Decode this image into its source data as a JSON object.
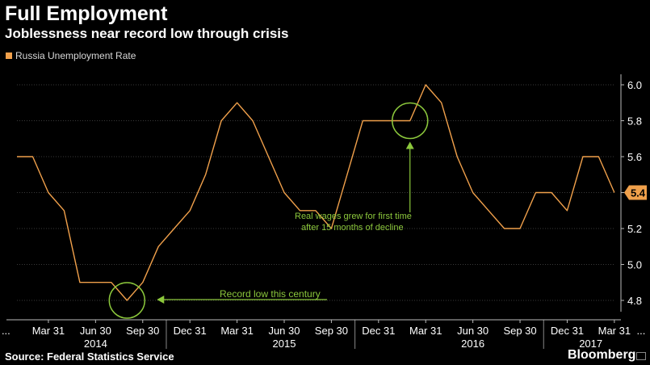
{
  "header": {
    "title": "Full Employment",
    "subtitle": "Joblessness near record low through crisis"
  },
  "footer": {
    "source": "Source: Federal Statistics Service",
    "brand": "Bloomberg"
  },
  "colors": {
    "line": "#f0a04b",
    "annotation": "#8cc83c",
    "grid": "#3a3a3a",
    "badge": "#f0a04b"
  },
  "chart_data": {
    "type": "line",
    "title": "Full Employment",
    "subtitle": "Joblessness near record low through crisis",
    "series": [
      {
        "name": "Russia Unemployment Rate",
        "x": [
          0,
          1,
          2,
          3,
          4,
          5,
          6,
          7,
          8,
          9,
          10,
          11,
          12,
          13,
          14,
          15,
          16,
          17,
          18,
          19,
          20,
          21,
          22,
          23,
          24,
          25,
          26,
          27,
          28,
          29,
          30,
          31,
          32,
          33,
          34,
          35,
          36,
          37,
          38
        ],
        "values": [
          5.6,
          5.6,
          5.4,
          5.3,
          4.9,
          4.9,
          4.9,
          4.8,
          4.9,
          5.1,
          5.2,
          5.3,
          5.5,
          5.8,
          5.9,
          5.8,
          5.6,
          5.4,
          5.3,
          5.3,
          5.2,
          5.5,
          5.8,
          5.8,
          5.8,
          5.8,
          6.0,
          5.9,
          5.6,
          5.4,
          5.3,
          5.2,
          5.2,
          5.4,
          5.4,
          5.3,
          5.6,
          5.6,
          5.4
        ]
      }
    ],
    "ylim": [
      4.7,
      6.05
    ],
    "yticks": [
      "4.8",
      "5.0",
      "5.2",
      "5.4",
      "5.6",
      "5.8",
      "6.0"
    ],
    "ytick_values": [
      4.8,
      5.0,
      5.2,
      5.4,
      5.6,
      5.8,
      6.0
    ],
    "xtick_labels": [
      "...",
      "Mar 31",
      "Jun 30",
      "Sep 30",
      "Dec 31",
      "Mar 31",
      "Jun 30",
      "Sep 30",
      "Dec 31",
      "Mar 31",
      "Jun 30",
      "Sep 30",
      "Dec 31",
      "Mar 31",
      "..."
    ],
    "xtick_positions": [
      -0.7,
      2,
      5,
      8,
      11,
      14,
      17,
      20,
      23,
      26,
      29,
      32,
      35,
      38,
      39.7
    ],
    "year_labels": [
      "2014",
      "2015",
      "2016",
      "2017"
    ],
    "year_centers": [
      5,
      17,
      29,
      36.5
    ],
    "year_dividers": [
      9.5,
      21.5,
      33.5
    ],
    "last_value_label": "5.4",
    "annotations": [
      {
        "label": "Record low this century",
        "x": 7,
        "y": 4.8
      },
      {
        "label": "Real wages grew for first time",
        "label2": "after 15 months of decline",
        "x": 25,
        "y": 5.8
      }
    ],
    "grid": true,
    "legend_position": "top-left"
  }
}
